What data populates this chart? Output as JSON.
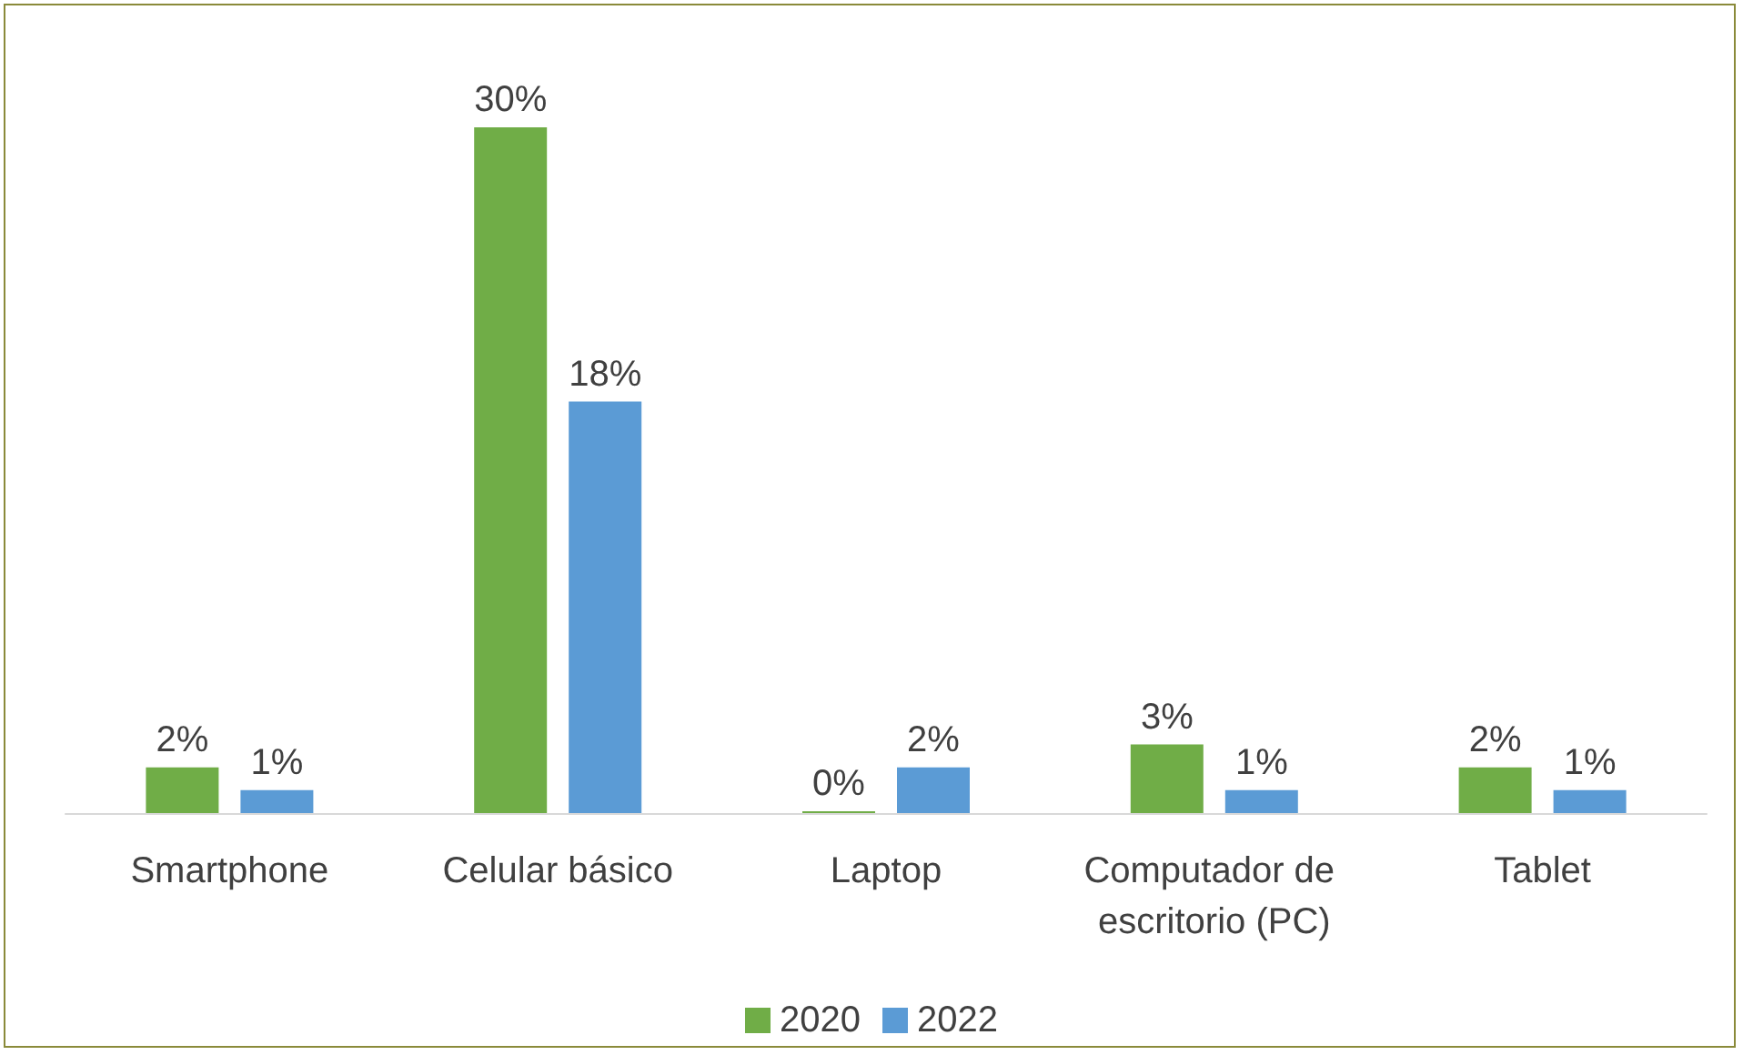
{
  "chart_data": {
    "type": "bar",
    "categories": [
      "Smartphone",
      "Celular básico",
      "Laptop",
      "Computador de escritorio (PC)",
      "Tablet"
    ],
    "series": [
      {
        "name": "2020",
        "color": "#70ad47",
        "values": [
          2,
          30,
          0,
          3,
          2
        ],
        "value_labels": [
          "2%",
          "30%",
          "0%",
          "3%",
          "2%"
        ]
      },
      {
        "name": "2022",
        "color": "#5b9bd5",
        "values": [
          1,
          18,
          2,
          1,
          1
        ],
        "value_labels": [
          "1%",
          "18%",
          "2%",
          "1%",
          "1%"
        ]
      }
    ],
    "legend": "bottom"
  }
}
